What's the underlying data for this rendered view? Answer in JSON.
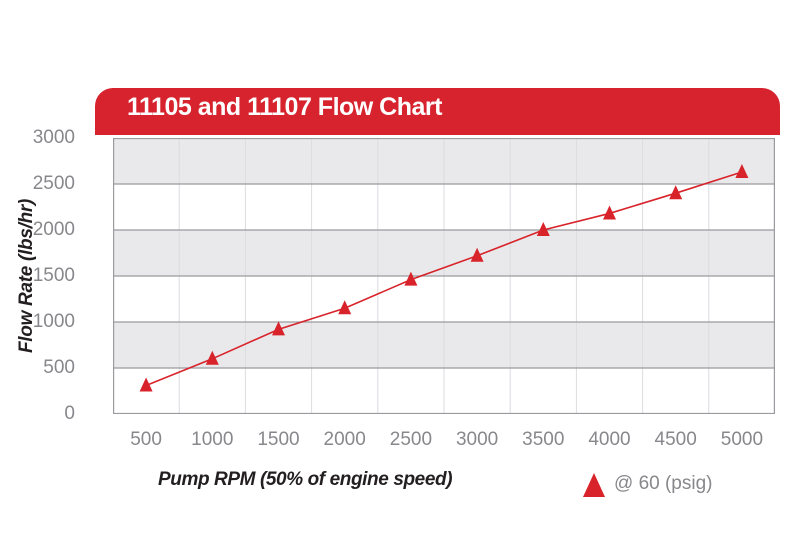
{
  "header": {
    "title": "11105 and 11107 Flow Chart"
  },
  "axes": {
    "y_title": "Flow Rate (lbs/hr)",
    "x_title": "Pump RPM (50% of engine speed)"
  },
  "legend": {
    "marker_icon": "red-triangle-up-icon",
    "label": "@ 60 (psig)"
  },
  "colors": {
    "header_red": "#d7232e",
    "series_red": "#d8232a",
    "band_gray": "#e9e9eb",
    "band_white": "#ffffff",
    "grid_gray": "#9b9b9f",
    "vgrid_gray": "#dcdce0",
    "tick_text": "#88888c",
    "axis_title_text": "#231f20",
    "title_text": "#ffffff"
  },
  "chart_data": {
    "type": "line",
    "title": "11105 and 11107 Flow Chart",
    "xlabel": "Pump RPM (50% of engine speed)",
    "ylabel": "Flow Rate (lbs/hr)",
    "categories": [
      500,
      1000,
      1500,
      2000,
      2500,
      3000,
      3500,
      4000,
      4500,
      5000
    ],
    "series": [
      {
        "name": "@ 60 (psig)",
        "marker": "triangle-up",
        "values": [
          310,
          600,
          920,
          1150,
          1460,
          1720,
          2000,
          2180,
          2400,
          2630
        ]
      }
    ],
    "ylim": [
      0,
      3000
    ],
    "y_tick_step": 500,
    "y_tick_labels": [
      "0",
      "500",
      "1000",
      "1500",
      "2000",
      "2500",
      "3000"
    ],
    "x_tick_labels": [
      "500",
      "1000",
      "1500",
      "2000",
      "2500",
      "3000",
      "3500",
      "4000",
      "4500",
      "5000"
    ],
    "grid": "horizontal gridlines plus light vertical lines at category boundaries",
    "background_bands": "alternating gray/white horizontal stripes, gray topmost",
    "legend_position": "below chart, right"
  }
}
